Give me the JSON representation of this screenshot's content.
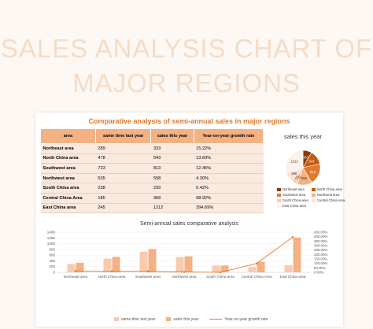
{
  "page": {
    "big_title": "SALES ANALYSIS CHART OF MAJOR REGIONS"
  },
  "colors": {
    "title": "#f5dcc6",
    "accent": "#e07a2e",
    "last_year_bar": "#f8cbad",
    "this_year_bar": "#f4b183",
    "growth_line": "#ed7d31"
  },
  "table": {
    "title": "Comparative analysis of semi-annual sales in major regions",
    "headers": [
      "area",
      "same time last year",
      "sales this year",
      "Year-on-year growth rate"
    ],
    "rows": [
      [
        "Northeast area",
        "289",
        "333",
        "15.22%"
      ],
      [
        "North China area",
        "478",
        "543",
        "13.60%"
      ],
      [
        "Southwest area",
        "723",
        "813",
        "12.45%"
      ],
      [
        "Northwest area",
        "535",
        "558",
        "4.30%"
      ],
      [
        "South China area",
        "238",
        "239",
        "0.42%"
      ],
      [
        "Central China Area",
        "185",
        "368",
        "98.92%"
      ],
      [
        "East China area",
        "245",
        "1212",
        "394.69%"
      ]
    ]
  },
  "chart_data": [
    {
      "type": "pie",
      "title": "sales this year",
      "categories": [
        "Northeast area",
        "North China area",
        "Southwest area",
        "Northwest area",
        "South China area",
        "Central China Area",
        "East China area"
      ],
      "values": [
        333,
        543,
        813,
        558,
        239,
        368,
        1212
      ],
      "slice_labels": [
        "333",
        "543",
        "813",
        "558",
        "239",
        "368",
        "1212"
      ],
      "colors": [
        "#843c0c",
        "#c55a11",
        "#e07a2e",
        "#f4b183",
        "#f8cbad",
        "#fbe2d5",
        "#fdf1ea"
      ],
      "legend": "bottom"
    },
    {
      "type": "bar",
      "title": "Semi-annual sales comparative analysis",
      "categories": [
        "Northeast area",
        "North China area",
        "Southwest area",
        "Northwest area",
        "South China area",
        "Central China Area",
        "East China area"
      ],
      "series": [
        {
          "name": "same time last year",
          "values": [
            289,
            478,
            723,
            535,
            238,
            185,
            245
          ],
          "color": "#f8cbad"
        },
        {
          "name": "sales this year",
          "values": [
            333,
            543,
            813,
            558,
            239,
            368,
            1212
          ],
          "color": "#f4b183"
        },
        {
          "name": "Year-on-year growth rate",
          "kind": "line",
          "axis": "right",
          "values": [
            15.22,
            13.6,
            12.45,
            4.3,
            0.42,
            98.92,
            394.69
          ],
          "color": "#ed7d31"
        }
      ],
      "ylim": [
        0,
        1400
      ],
      "yticks": [
        "0",
        "200",
        "400",
        "600",
        "800",
        "1000",
        "1200",
        "1400"
      ],
      "y2lim": [
        0,
        450
      ],
      "y2ticks": [
        "0.00%",
        "50.00%",
        "100.00%",
        "150.00%",
        "200.00%",
        "250.00%",
        "300.00%",
        "350.00%",
        "400.00%",
        "450.00%"
      ],
      "legend": "bottom"
    }
  ]
}
